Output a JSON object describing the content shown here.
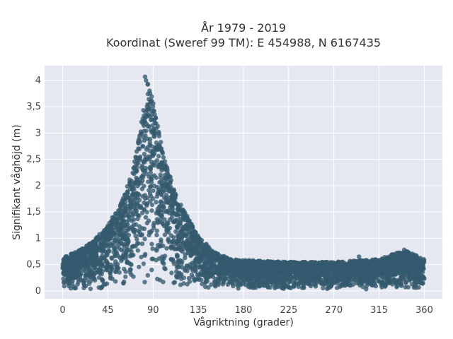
{
  "chart_data": {
    "type": "scatter",
    "title_line1": "År 1979 - 2019",
    "title_line2": "Koordinat (Sweref 99 TM): E 454988, N 6167435",
    "xlabel": "Vågriktning (grader)",
    "ylabel": "Signifikant våghöjd (m)",
    "xlim": [
      -18,
      378
    ],
    "ylim": [
      -0.15,
      4.28
    ],
    "xticks": [
      0,
      45,
      90,
      135,
      180,
      225,
      270,
      315,
      360
    ],
    "xtick_labels": [
      "0",
      "45",
      "90",
      "135",
      "180",
      "225",
      "270",
      "315",
      "360"
    ],
    "yticks": [
      0,
      0.5,
      1,
      1.5,
      2,
      2.5,
      3,
      3.5,
      4
    ],
    "ytick_labels": [
      "0",
      "0,5",
      "1",
      "1,5",
      "2",
      "2,5",
      "3",
      "3,5",
      "4"
    ],
    "grid": true,
    "marker_color": "#355a6e",
    "background_color": "#e5e8f0",
    "envelope": {
      "x": [
        0,
        15,
        30,
        45,
        60,
        70,
        80,
        85,
        90,
        95,
        100,
        110,
        120,
        135,
        150,
        165,
        180,
        225,
        270,
        315,
        340,
        360
      ],
      "y_max": [
        0.65,
        0.75,
        0.95,
        1.25,
        1.75,
        2.3,
        3.4,
        4.05,
        3.6,
        3.1,
        2.6,
        2.0,
        1.55,
        1.05,
        0.75,
        0.62,
        0.58,
        0.55,
        0.55,
        0.6,
        0.78,
        0.6
      ],
      "y_min": [
        0.02,
        0.02,
        0.02,
        0.02,
        0.03,
        0.04,
        0.05,
        0.06,
        0.05,
        0.05,
        0.04,
        0.04,
        0.03,
        0.03,
        0.03,
        0.03,
        0.03,
        0.03,
        0.03,
        0.03,
        0.03,
        0.03
      ]
    },
    "notable_points": [
      {
        "x": 82,
        "y": 4.07
      },
      {
        "x": 83,
        "y": 4.0
      },
      {
        "x": 87,
        "y": 3.75
      },
      {
        "x": 340,
        "y": 0.78
      },
      {
        "x": 295,
        "y": 0.65
      }
    ]
  }
}
